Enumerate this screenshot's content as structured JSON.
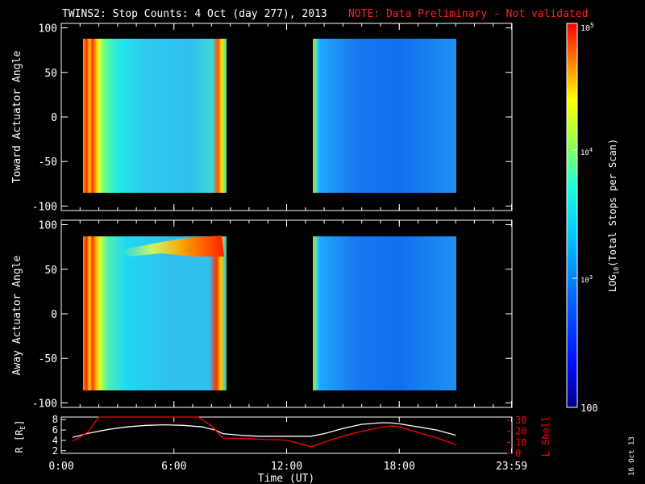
{
  "header": {
    "title": "TWINS2: Stop Counts:  4 Oct (day 277), 2013",
    "note": "NOTE: Data Preliminary - Not validated"
  },
  "chart_data": [
    {
      "type": "heatmap",
      "name": "Toward panel",
      "ylabel": "Toward Actuator Angle",
      "ylim": [
        -105,
        105
      ],
      "yticks": [
        100,
        50,
        0,
        -50,
        -100
      ],
      "xlim": [
        0,
        24
      ],
      "intervals": [
        {
          "start": 0.6,
          "end": 8.6,
          "description": "high counts at edges, mid-range interior"
        },
        {
          "start": 13.3,
          "end": 21.0,
          "description": "lower counts, blue"
        }
      ]
    },
    {
      "type": "heatmap",
      "name": "Away panel",
      "ylabel": "Away Actuator Angle",
      "ylim": [
        -105,
        105
      ],
      "yticks": [
        100,
        50,
        0,
        -50,
        -100
      ],
      "xlim": [
        0,
        24
      ],
      "intervals": [
        {
          "start": 0.6,
          "end": 8.6,
          "description": "high counts at edges and near 75 deg late in interval"
        },
        {
          "start": 13.3,
          "end": 21.0,
          "description": "lower counts, blue"
        }
      ]
    },
    {
      "type": "line",
      "name": "Orbit panel",
      "left_label": "R [RE]",
      "left_label_base": "R [R",
      "left_label_sub": "E",
      "right_label": "L Shell",
      "left_ticks": [
        8,
        6,
        4,
        2
      ],
      "right_ticks": [
        30,
        20,
        10,
        0
      ],
      "left_ylim": [
        1.5,
        8.5
      ],
      "right_ylim": [
        0,
        33
      ],
      "xlabel": "Time (UT)",
      "xticks": [
        "0:00",
        "6:00",
        "12:00",
        "18:00",
        "23:59"
      ],
      "xtick_values": [
        0,
        6,
        12,
        18,
        23.98
      ],
      "series": [
        {
          "axis": "left",
          "color": "#ffffff",
          "x": [
            0.6,
            1.5,
            2.5,
            3.5,
            4.5,
            5.5,
            6.5,
            7.5,
            8.2,
            8.6,
            9.5,
            10.5,
            11.5,
            12.5,
            13.3,
            14.0,
            15.0,
            16.0,
            17.0,
            17.5,
            18.0,
            19.0,
            20.0,
            21.0
          ],
          "y": [
            4.6,
            5.4,
            6.1,
            6.6,
            6.9,
            7.0,
            6.9,
            6.6,
            6.0,
            5.3,
            5.0,
            4.8,
            4.8,
            4.8,
            4.8,
            5.3,
            6.3,
            7.1,
            7.4,
            7.4,
            7.2,
            6.6,
            6.0,
            5.0
          ]
        },
        {
          "axis": "right",
          "color": "#ff0000",
          "x": [
            0.6,
            1.4,
            2.0,
            7.3,
            8.0,
            8.6,
            12.0,
            13.3,
            14.5,
            15.5,
            16.5,
            17.5,
            18.0,
            19.0,
            20.0,
            21.0
          ],
          "y": [
            11,
            19,
            33,
            33,
            25,
            14,
            12,
            6,
            13,
            18,
            22,
            25,
            24,
            19,
            14,
            8
          ]
        }
      ]
    }
  ],
  "colorbar": {
    "title": "LOG10(Total Stops per Scan)",
    "title_base": "LOG",
    "title_sub": "10",
    "title_rest": "(Total Stops per Scan)",
    "tick_100": "100",
    "tick_1e3_base": "10",
    "tick_1e3_exp": "3",
    "tick_1e4_base": "10",
    "tick_1e4_exp": "4",
    "tick_1e5_base": "10",
    "tick_1e5_exp": "5"
  },
  "footer": {
    "date_stamp": "16 Oct 13"
  },
  "colors": {
    "note": "#ff2020",
    "lshell": "#ff0000",
    "axis": "#ffffff"
  }
}
